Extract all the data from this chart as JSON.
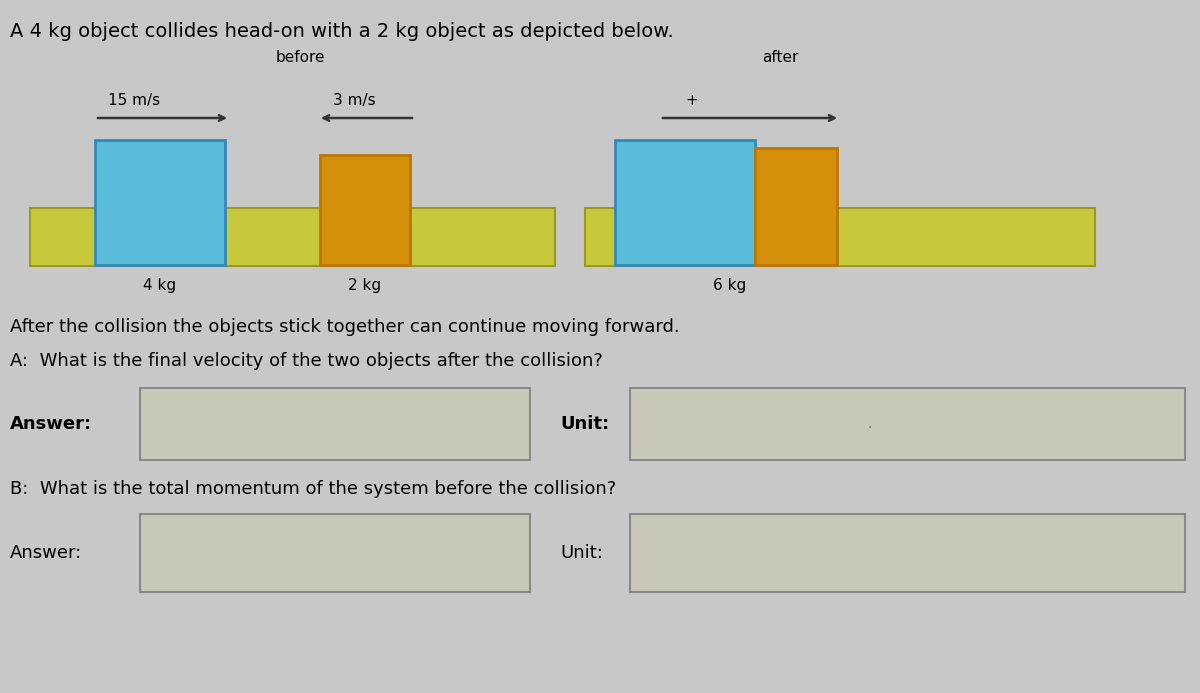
{
  "title": "A 4 kg object collides head-on with a 2 kg object as depicted below.",
  "bg_color": "#c8c8c8",
  "before_label": "before",
  "after_label": "after",
  "v1_label": "15 m/s",
  "v2_label": "3 m/s",
  "v3_label": "+",
  "mass1_label": "4 kg",
  "mass2_label": "2 kg",
  "mass3_label": "6 kg",
  "blue_color": "#5bbcd9",
  "orange_color": "#d4900a",
  "track_color": "#c8c83c",
  "track_border": "#9a9a20",
  "box_color": "#c8c8b8",
  "box_border": "#888888",
  "text_line1": "After the collision the objects stick together can continue moving forward.",
  "text_A": "A:  What is the final velocity of the two objects after the collision?",
  "text_Answer_A": "Answer:",
  "text_Unit_A": "Unit:",
  "text_B": "B:  What is the total momentum of the system before the collision?",
  "text_Answer_B": "Answer:",
  "text_Unit_B": "Unit:"
}
